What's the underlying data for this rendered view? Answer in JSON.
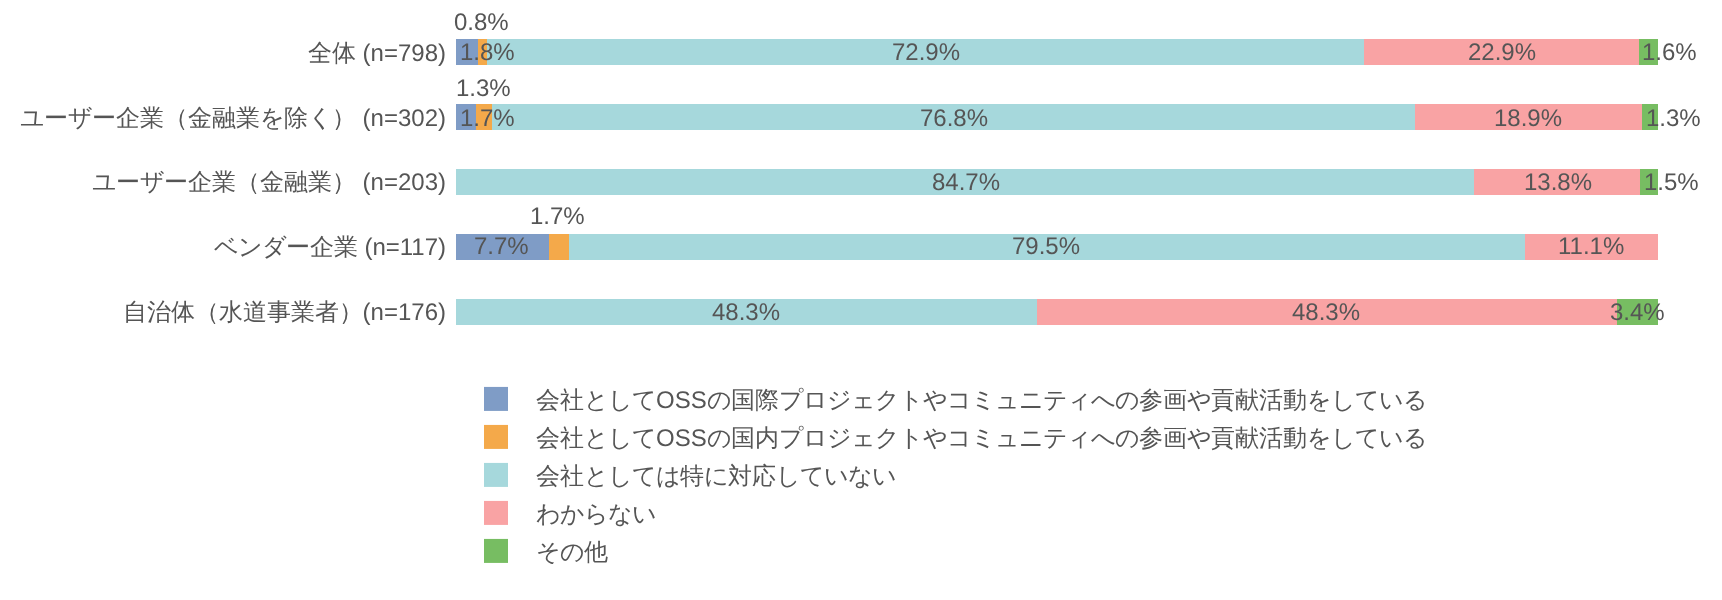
{
  "chart_data": {
    "type": "bar",
    "orientation": "horizontal",
    "stacked": true,
    "categories": [
      "全体 (n=798)",
      "ユーザー企業（金融業を除く） (n=302)",
      "ユーザー企業（金融業） (n=203)",
      "ベンダー企業 (n=117)",
      "自治体（水道事業者）(n=176)"
    ],
    "series": [
      {
        "name": "会社としてOSSの国際プロジェクトやコミュニティへの参画や貢献活動をしている",
        "color": "#7f9cc6",
        "values": [
          1.8,
          1.7,
          null,
          7.7,
          null
        ],
        "value_labels": [
          "1.8%",
          "1.7%",
          null,
          "7.7%",
          null
        ]
      },
      {
        "name": "会社としてOSSの国内プロジェクトやコミュニティへの参画や貢献活動をしている",
        "color": "#f4a94a",
        "values": [
          0.8,
          1.3,
          null,
          1.7,
          null
        ],
        "value_labels": [
          "0.8%",
          "1.3%",
          null,
          "1.7%",
          null
        ]
      },
      {
        "name": "会社としては特に対応していない",
        "color": "#a6d8dc",
        "values": [
          72.9,
          76.8,
          84.7,
          79.5,
          48.3
        ],
        "value_labels": [
          "72.9%",
          "76.8%",
          "84.7%",
          "79.5%",
          "48.3%"
        ]
      },
      {
        "name": "わからない",
        "color": "#f9a3a4",
        "values": [
          22.9,
          18.9,
          13.8,
          11.1,
          48.3
        ],
        "value_labels": [
          "22.9%",
          "18.9%",
          "13.8%",
          "11.1%",
          "48.3%"
        ]
      },
      {
        "name": "その他",
        "color": "#77bd62",
        "values": [
          1.6,
          1.3,
          1.5,
          null,
          3.4
        ],
        "value_labels": [
          "1.6%",
          "1.3%",
          "1.5%",
          null,
          "3.4%"
        ]
      }
    ],
    "xlim": [
      0,
      100
    ],
    "tick_labels": "y",
    "legend": "bottom"
  }
}
